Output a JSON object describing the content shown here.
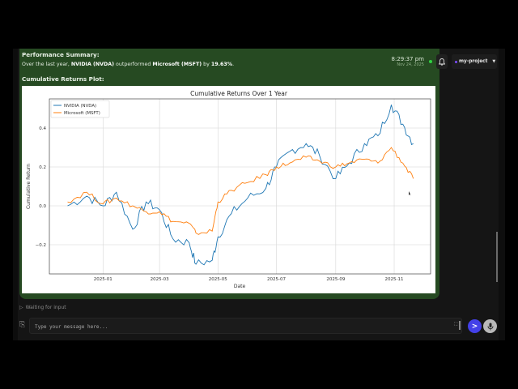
{
  "message": {
    "title": "Performance Summary:",
    "summary_prefix": "Over the last year, ",
    "summary_stock_a": "NVIDIA (NVDA)",
    "summary_middle": " outperformed ",
    "summary_stock_b": "Microsoft (MSFT)",
    "summary_by": " by ",
    "summary_pct": "19.63%",
    "summary_end": ".",
    "plot_label": "Cumulative Returns Plot:",
    "time": "8:29:37 pm",
    "date": "Nov 24, 2025",
    "status_color": "#2fd142"
  },
  "header": {
    "bell_icon": "bell-icon",
    "project_label": "my-project",
    "project_dot_color": "#7a4dff"
  },
  "footer": {
    "status": "Waiting for input",
    "input_placeholder": "Type your message here...",
    "input_value": "",
    "send_label": ">",
    "send_color": "#4340e8"
  },
  "chart_data": {
    "type": "line",
    "title": "Cumulative Returns Over 1 Year",
    "xlabel": "Date",
    "ylabel": "Cumulative Return",
    "ylim": [
      -0.35,
      0.55
    ],
    "yticks": [
      "0.4",
      "0.2",
      "0.0",
      "−0.2"
    ],
    "xticks": [
      "2025-01",
      "2025-03",
      "2025-05",
      "2025-07",
      "2025-09",
      "2025-11"
    ],
    "grid": true,
    "legend_position": "upper left",
    "x": [
      "2024-11-25",
      "2024-12-15",
      "2025-01-01",
      "2025-01-15",
      "2025-02-01",
      "2025-02-15",
      "2025-03-01",
      "2025-03-15",
      "2025-04-01",
      "2025-04-08",
      "2025-04-25",
      "2025-05-01",
      "2025-05-15",
      "2025-06-01",
      "2025-06-20",
      "2025-07-01",
      "2025-07-15",
      "2025-08-01",
      "2025-08-15",
      "2025-09-01",
      "2025-09-15",
      "2025-10-01",
      "2025-10-15",
      "2025-10-29",
      "2025-11-10",
      "2025-11-21"
    ],
    "series": [
      {
        "name": "NVIDIA (NVDA)",
        "color": "#1f77b4",
        "values": [
          0.0,
          0.05,
          0.0,
          0.07,
          -0.12,
          0.02,
          -0.02,
          -0.17,
          -0.19,
          -0.3,
          -0.28,
          -0.16,
          -0.04,
          0.04,
          0.09,
          0.2,
          0.28,
          0.32,
          0.26,
          0.14,
          0.22,
          0.32,
          0.36,
          0.52,
          0.42,
          0.32
        ]
      },
      {
        "name": "Microsoft (MSFT)",
        "color": "#ff7f0e",
        "values": [
          0.02,
          0.07,
          0.01,
          0.04,
          0.0,
          -0.03,
          -0.03,
          -0.08,
          -0.09,
          -0.14,
          -0.13,
          0.02,
          0.08,
          0.12,
          0.16,
          0.2,
          0.22,
          0.25,
          0.23,
          0.2,
          0.22,
          0.24,
          0.22,
          0.3,
          0.22,
          0.14
        ]
      }
    ]
  }
}
